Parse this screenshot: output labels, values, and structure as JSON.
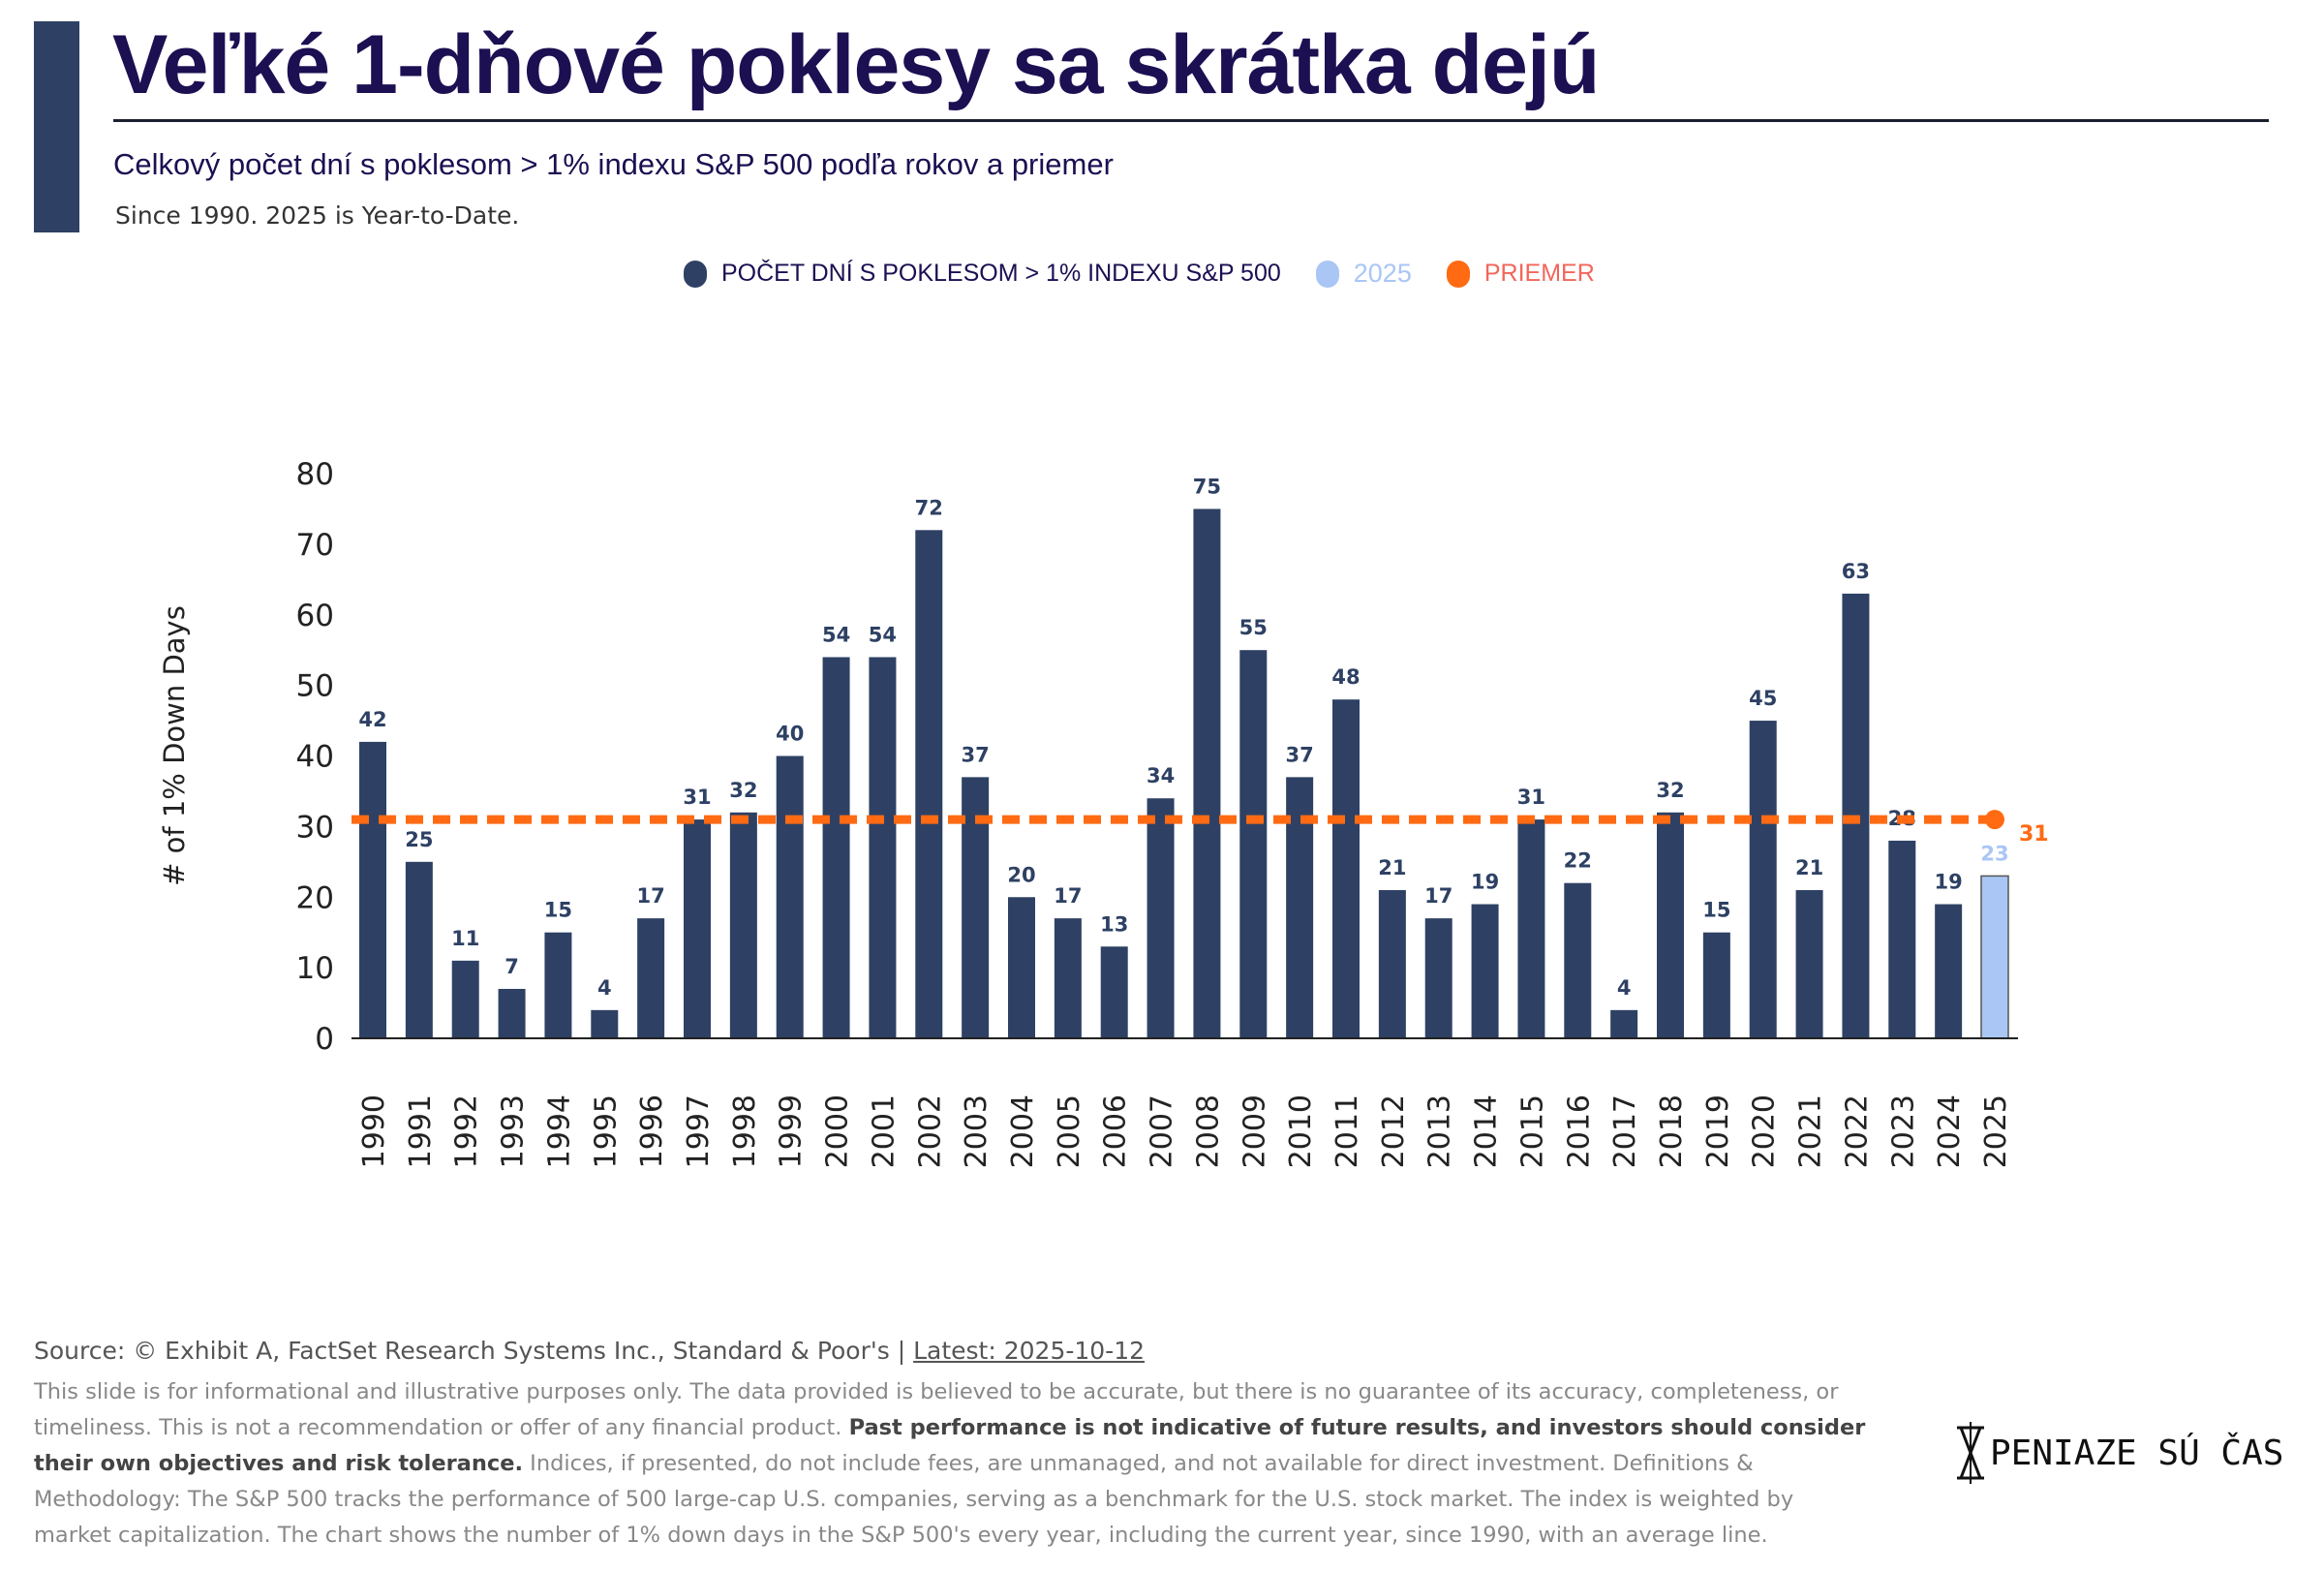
{
  "header": {
    "title": "Veľké 1-dňové poklesy sa skrátka dejú",
    "subtitle": "Celkový počet dní s poklesom > 1% indexu S&P 500 podľa rokov a priemer",
    "note": "Since 1990. 2025 is Year-to-Date."
  },
  "colors": {
    "bar": "#2e4164",
    "current": "#a9c6f5",
    "average": "#ff6a13",
    "title": "#1c0f52"
  },
  "chart_data": {
    "type": "bar",
    "title": "Veľké 1-dňové poklesy sa skrátka dejú",
    "ylabel": "# of 1% Down Days",
    "xlabel": "",
    "ylim": [
      0,
      80
    ],
    "yticks": [
      "0",
      "10",
      "20",
      "30",
      "40",
      "50",
      "60",
      "70",
      "80"
    ],
    "legend": [
      {
        "label": "POČET DNÍ S POKLESOM > 1% INDEXU S&P 500",
        "color": "#2e4164"
      },
      {
        "label": "2025",
        "color": "#a9c6f5"
      },
      {
        "label": "PRIEMER",
        "color": "#ff6a13"
      }
    ],
    "legend_position": "top-center",
    "categories": [
      "1990",
      "1991",
      "1992",
      "1993",
      "1994",
      "1995",
      "1996",
      "1997",
      "1998",
      "1999",
      "2000",
      "2001",
      "2002",
      "2003",
      "2004",
      "2005",
      "2006",
      "2007",
      "2008",
      "2009",
      "2010",
      "2011",
      "2012",
      "2013",
      "2014",
      "2015",
      "2016",
      "2017",
      "2018",
      "2019",
      "2020",
      "2021",
      "2022",
      "2023",
      "2024",
      "2025"
    ],
    "values": [
      42,
      25,
      11,
      7,
      15,
      4,
      17,
      31,
      32,
      40,
      54,
      54,
      72,
      37,
      20,
      17,
      13,
      34,
      75,
      55,
      37,
      48,
      21,
      17,
      19,
      31,
      22,
      4,
      32,
      15,
      45,
      21,
      63,
      28,
      19,
      23
    ],
    "average": 31,
    "average_label": "31"
  },
  "footer": {
    "source": "Source: © Exhibit A, FactSet Research Systems Inc., Standard & Poor's | ",
    "latest": "Latest: 2025-10-12",
    "disclaimer_1": "This slide is for informational and illustrative purposes only. The data provided is believed to be accurate, but there is no guarantee of its accuracy, completeness, or timeliness. This is not a recommendation or offer of any financial product. ",
    "disclaimer_bold": "Past performance is not indicative of future results, and investors should consider their own objectives and risk tolerance.",
    "disclaimer_2": " Indices, if presented, do not include fees, are unmanaged, and not available for direct investment. Definitions & Methodology: The S&P 500 tracks the performance of 500 large-cap U.S. companies, serving as a benchmark for the U.S. stock market. The index is weighted by market capitalization. The chart shows the number of 1% down days in the S&P 500's every year, including the current year, since 1990, with an average line."
  },
  "logo": {
    "text": "PENIAZE SÚ ČAS"
  }
}
